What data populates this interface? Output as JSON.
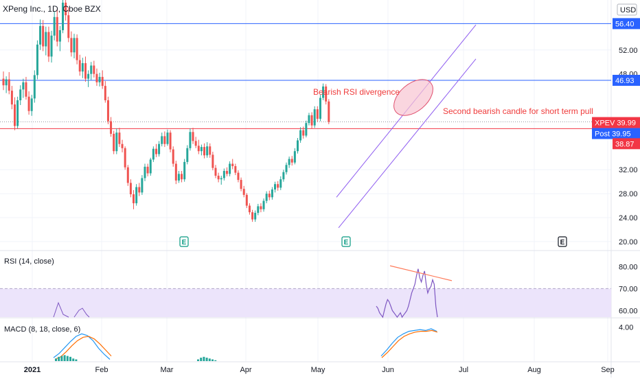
{
  "header": {
    "symbol_title": "XPeng Inc., 1D, Cboe BZX",
    "currency": "USD"
  },
  "colors": {
    "up": "#26a69a",
    "down": "#ef5350",
    "hline_blue": "#2962ff",
    "hline_red": "#f23645",
    "channel": "#8e5cf0",
    "rsi_line": "#7e57c2",
    "rsi_band": "#ece4fb",
    "macd_line": "#2196f3",
    "signal_line": "#ff6d00",
    "hist_up": "#26a69a",
    "earnings": "#089981",
    "annotation_red": "#ef3b3b",
    "ellipse_fill": "#f8c4d2"
  },
  "annotations": {
    "divergence_label": "Bearish RSI divergence",
    "candle_label": "Second bearish candle for short term pull back"
  },
  "badges": {
    "top_level": "56.40",
    "upper_level": "46.93",
    "symbol_label": "XPEV",
    "symbol_price": "39.99",
    "post_label": "Post",
    "post_price": "39.95",
    "support_level": "38.87"
  },
  "earnings_markers": [
    "E",
    "E",
    "E"
  ],
  "rsi": {
    "title": "RSI (14, close)",
    "ticks": [
      "80.00",
      "70.00",
      "60.00"
    ]
  },
  "macd": {
    "title": "MACD (8, 18, close, 6)",
    "ticks": [
      "4.00"
    ]
  },
  "chart_data": {
    "type": "candlestick",
    "price_axis": {
      "ticks": [
        20,
        24,
        28,
        32,
        52
      ],
      "partial_tick": "48.00",
      "range": [
        18.5,
        60
      ]
    },
    "x_axis": {
      "labels": [
        "2021",
        "Feb",
        "Mar",
        "Apr",
        "May",
        "Jun",
        "Jul",
        "Aug",
        "Sep"
      ]
    },
    "horizontal_levels": [
      56.4,
      46.93,
      38.87
    ],
    "ohlc": [
      [
        47.2,
        48.4,
        45.3,
        46.1
      ],
      [
        46.1,
        47.6,
        44.8,
        47.1
      ],
      [
        47.1,
        48.3,
        44.6,
        45.2
      ],
      [
        45.2,
        46.0,
        42.1,
        42.9
      ],
      [
        42.9,
        44.1,
        38.6,
        39.3
      ],
      [
        39.3,
        44.2,
        38.9,
        43.6
      ],
      [
        43.6,
        46.1,
        42.8,
        45.4
      ],
      [
        45.4,
        47.2,
        44.0,
        46.6
      ],
      [
        46.6,
        47.5,
        43.7,
        44.2
      ],
      [
        44.2,
        45.1,
        41.2,
        41.8
      ],
      [
        41.8,
        44.5,
        41.0,
        43.9
      ],
      [
        43.9,
        48.6,
        43.2,
        47.8
      ],
      [
        47.8,
        53.6,
        47.1,
        52.9
      ],
      [
        52.9,
        57.1,
        52.0,
        56.0
      ],
      [
        56.0,
        57.0,
        51.8,
        52.6
      ],
      [
        52.6,
        55.9,
        51.1,
        55.0
      ],
      [
        55.0,
        55.9,
        50.0,
        50.9
      ],
      [
        50.9,
        55.2,
        49.9,
        54.4
      ],
      [
        54.4,
        58.4,
        53.6,
        57.5
      ],
      [
        57.5,
        58.8,
        52.6,
        53.4
      ],
      [
        53.4,
        56.0,
        51.8,
        55.3
      ],
      [
        55.3,
        61.6,
        54.8,
        59.9
      ],
      [
        59.9,
        61.9,
        56.9,
        57.8
      ],
      [
        57.8,
        59.1,
        53.3,
        54.0
      ],
      [
        54.0,
        55.1,
        50.9,
        51.6
      ],
      [
        51.6,
        54.7,
        50.6,
        54.0
      ],
      [
        54.0,
        54.6,
        49.6,
        50.3
      ],
      [
        50.3,
        51.2,
        47.7,
        48.4
      ],
      [
        48.4,
        50.7,
        47.3,
        49.8
      ],
      [
        49.8,
        50.9,
        46.7,
        47.2
      ],
      [
        47.2,
        48.6,
        45.8,
        48.0
      ],
      [
        48.0,
        50.0,
        47.0,
        49.4
      ],
      [
        49.4,
        50.2,
        47.4,
        48.0
      ],
      [
        48.0,
        48.9,
        46.0,
        46.6
      ],
      [
        46.6,
        48.2,
        45.9,
        47.5
      ],
      [
        47.5,
        48.6,
        45.5,
        46.0
      ],
      [
        46.0,
        46.8,
        43.2,
        43.6
      ],
      [
        43.6,
        44.2,
        39.6,
        40.1
      ],
      [
        40.1,
        40.8,
        37.5,
        38.0
      ],
      [
        38.0,
        38.5,
        34.6,
        35.1
      ],
      [
        35.1,
        38.9,
        34.6,
        38.2
      ],
      [
        38.2,
        39.0,
        35.8,
        36.3
      ],
      [
        36.3,
        37.0,
        34.9,
        35.6
      ],
      [
        35.6,
        35.9,
        32.0,
        32.4
      ],
      [
        32.4,
        32.8,
        29.3,
        29.8
      ],
      [
        29.8,
        30.4,
        27.4,
        27.9
      ],
      [
        27.9,
        28.6,
        25.4,
        26.4
      ],
      [
        26.4,
        29.6,
        26.0,
        29.1
      ],
      [
        29.1,
        29.8,
        27.6,
        28.2
      ],
      [
        28.2,
        31.1,
        27.8,
        30.6
      ],
      [
        30.6,
        33.0,
        30.1,
        32.5
      ],
      [
        32.5,
        33.0,
        30.9,
        31.4
      ],
      [
        31.4,
        34.0,
        31.0,
        33.7
      ],
      [
        33.7,
        35.9,
        33.3,
        35.5
      ],
      [
        35.5,
        36.3,
        34.1,
        34.6
      ],
      [
        34.6,
        36.8,
        34.2,
        36.3
      ],
      [
        36.3,
        38.2,
        35.9,
        37.6
      ],
      [
        37.6,
        38.4,
        35.8,
        36.3
      ],
      [
        36.3,
        38.7,
        36.0,
        38.2
      ],
      [
        38.2,
        38.6,
        34.9,
        35.4
      ],
      [
        35.4,
        35.9,
        32.5,
        33.0
      ],
      [
        33.0,
        33.5,
        29.6,
        30.2
      ],
      [
        30.2,
        31.8,
        29.8,
        31.3
      ],
      [
        31.3,
        31.8,
        29.9,
        30.4
      ],
      [
        30.4,
        33.8,
        30.0,
        33.3
      ],
      [
        33.3,
        36.1,
        32.9,
        35.6
      ],
      [
        35.6,
        38.9,
        35.2,
        38.3
      ],
      [
        38.3,
        39.0,
        36.3,
        36.8
      ],
      [
        36.8,
        37.5,
        35.6,
        36.0
      ],
      [
        36.0,
        37.0,
        34.6,
        35.1
      ],
      [
        35.1,
        36.2,
        34.4,
        35.8
      ],
      [
        35.8,
        36.4,
        33.9,
        34.4
      ],
      [
        34.4,
        36.6,
        34.0,
        35.9
      ],
      [
        35.9,
        36.4,
        34.0,
        34.5
      ],
      [
        34.5,
        35.0,
        31.9,
        32.3
      ],
      [
        32.3,
        32.8,
        30.6,
        31.0
      ],
      [
        31.0,
        31.5,
        29.9,
        30.4
      ],
      [
        30.4,
        31.0,
        29.5,
        30.6
      ],
      [
        30.6,
        32.2,
        30.2,
        31.8
      ],
      [
        31.8,
        32.4,
        30.9,
        31.3
      ],
      [
        31.3,
        33.4,
        30.9,
        33.0
      ],
      [
        33.0,
        33.8,
        32.1,
        32.6
      ],
      [
        32.6,
        33.0,
        31.1,
        31.5
      ],
      [
        31.5,
        31.9,
        29.9,
        30.3
      ],
      [
        30.3,
        30.7,
        28.4,
        28.8
      ],
      [
        28.8,
        29.3,
        27.4,
        27.8
      ],
      [
        27.8,
        28.1,
        25.6,
        26.0
      ],
      [
        26.0,
        26.4,
        24.5,
        24.9
      ],
      [
        24.9,
        25.3,
        23.3,
        23.7
      ],
      [
        23.7,
        25.2,
        23.3,
        24.8
      ],
      [
        24.8,
        26.3,
        24.4,
        25.9
      ],
      [
        25.9,
        26.4,
        24.9,
        25.4
      ],
      [
        25.4,
        27.2,
        25.0,
        26.8
      ],
      [
        26.8,
        28.4,
        26.4,
        28.0
      ],
      [
        28.0,
        28.5,
        26.9,
        27.4
      ],
      [
        27.4,
        29.1,
        27.0,
        28.7
      ],
      [
        28.7,
        30.0,
        28.2,
        29.6
      ],
      [
        29.6,
        30.1,
        28.5,
        29.0
      ],
      [
        29.0,
        30.9,
        28.6,
        30.4
      ],
      [
        30.4,
        32.0,
        30.0,
        31.6
      ],
      [
        31.6,
        33.2,
        31.2,
        32.8
      ],
      [
        32.8,
        34.2,
        32.3,
        33.8
      ],
      [
        33.8,
        34.3,
        32.7,
        33.2
      ],
      [
        33.2,
        35.6,
        32.9,
        35.1
      ],
      [
        35.1,
        37.3,
        34.7,
        36.9
      ],
      [
        36.9,
        39.1,
        36.5,
        38.6
      ],
      [
        38.6,
        39.2,
        37.2,
        37.7
      ],
      [
        37.7,
        40.2,
        37.4,
        39.8
      ],
      [
        39.8,
        41.5,
        39.4,
        41.1
      ],
      [
        41.1,
        41.6,
        38.9,
        39.4
      ],
      [
        39.4,
        42.6,
        39.0,
        42.1
      ],
      [
        42.1,
        42.6,
        40.0,
        40.5
      ],
      [
        40.5,
        44.5,
        40.1,
        44.0
      ],
      [
        44.0,
        46.4,
        43.6,
        45.9
      ],
      [
        45.9,
        46.3,
        42.9,
        43.4
      ],
      [
        43.4,
        43.8,
        39.6,
        40.0
      ]
    ],
    "rsi": {
      "range": [
        57,
        87
      ],
      "band": [
        60,
        70
      ],
      "values": [
        62,
        61,
        59,
        58,
        57,
        60,
        63,
        65,
        64,
        62,
        60,
        59,
        58,
        57,
        58,
        59,
        57,
        58,
        59,
        60,
        62,
        65,
        68,
        70,
        72,
        76,
        79,
        75,
        73,
        76,
        78,
        72,
        68,
        70,
        71,
        74,
        72,
        62,
        55
      ],
      "divergence_line": [
        [
          0,
          80.4
        ],
        [
          1,
          73.6
        ]
      ]
    },
    "macd": {
      "range": [
        0,
        5
      ],
      "ticks": [
        4
      ],
      "macd_line": [
        0.4,
        0.9,
        1.6,
        2.3,
        2.9,
        3.2,
        3.0,
        2.4,
        1.5,
        0.8,
        0.2
      ],
      "signal_line": [
        0.2,
        0.5,
        1.1,
        1.8,
        2.4,
        2.8,
        2.9,
        2.6,
        2.0,
        1.3,
        0.6
      ],
      "recent_macd": [
        0.6,
        1.3,
        2.1,
        2.8,
        3.2,
        3.5,
        3.6,
        3.7,
        3.6,
        3.8,
        3.5
      ],
      "recent_signal": [
        0.4,
        1.0,
        1.7,
        2.4,
        2.9,
        3.2,
        3.4,
        3.5,
        3.5,
        3.6,
        3.4
      ],
      "histogram": [
        0.3,
        0.5,
        0.6,
        0.7,
        0.6,
        0.5,
        0.3,
        0.2
      ]
    }
  }
}
